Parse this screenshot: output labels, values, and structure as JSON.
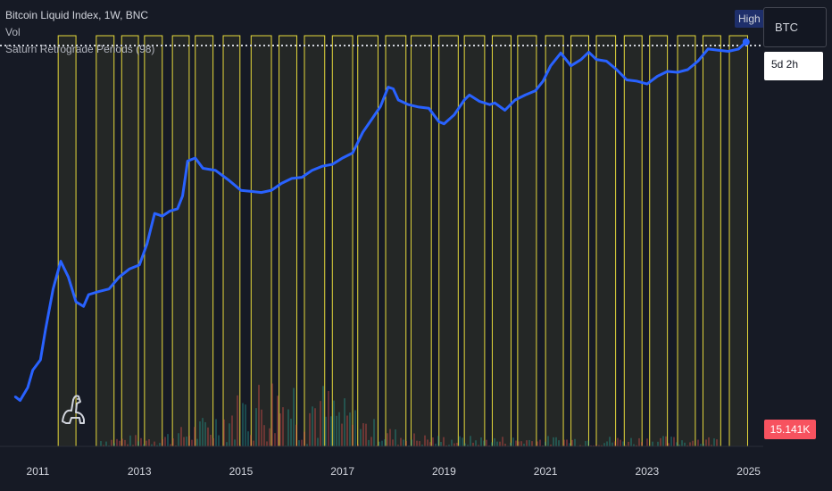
{
  "legend": {
    "title": "Bitcoin Liquid Index, 1W, BNC",
    "row1": "Vol",
    "row2": "Saturn Retrograde Periods (98)"
  },
  "badge_high": "High",
  "symbol": "BTC",
  "countdown": "5d 2h",
  "last_volume": "15.141K",
  "colors": {
    "background": "#161a25",
    "price_line": "#2962ff",
    "retrograde_border": "#e6d93b",
    "retrograde_fill": "rgba(230,217,59,0.07)",
    "volume_label": "#f7525f"
  },
  "chart_data": {
    "type": "line",
    "title": "Bitcoin Liquid Index, 1W, BNC",
    "x_ticks": [
      "2011",
      "2013",
      "2015",
      "2017",
      "2019",
      "2021",
      "2023",
      "2025"
    ],
    "xlim": [
      2010.5,
      2025.2
    ],
    "y_scale": "log",
    "ylim": [
      0.04,
      90000
    ],
    "series": [
      {
        "name": "Bitcoin Liquid Index",
        "x": [
          2010.55,
          2010.65,
          2010.8,
          2010.9,
          2011.05,
          2011.15,
          2011.3,
          2011.45,
          2011.6,
          2011.75,
          2011.9,
          2012.0,
          2012.2,
          2012.4,
          2012.6,
          2012.8,
          2013.0,
          2013.15,
          2013.3,
          2013.45,
          2013.6,
          2013.75,
          2013.85,
          2013.95,
          2014.1,
          2014.25,
          2014.5,
          2014.75,
          2015.0,
          2015.2,
          2015.4,
          2015.6,
          2015.8,
          2016.0,
          2016.2,
          2016.4,
          2016.6,
          2016.8,
          2017.0,
          2017.2,
          2017.4,
          2017.6,
          2017.75,
          2017.9,
          2018.0,
          2018.1,
          2018.3,
          2018.5,
          2018.7,
          2018.9,
          2019.0,
          2019.2,
          2019.4,
          2019.5,
          2019.7,
          2019.9,
          2020.0,
          2020.2,
          2020.4,
          2020.6,
          2020.8,
          2020.95,
          2021.1,
          2021.3,
          2021.5,
          2021.7,
          2021.85,
          2022.0,
          2022.2,
          2022.4,
          2022.6,
          2022.8,
          2023.0,
          2023.2,
          2023.4,
          2023.6,
          2023.8,
          2024.0,
          2024.2,
          2024.4,
          2024.6,
          2024.8,
          2024.95
        ],
        "values": [
          0.07,
          0.06,
          0.1,
          0.2,
          0.3,
          1.0,
          5,
          15,
          8,
          3,
          2.5,
          4,
          4.5,
          5,
          8,
          11,
          13,
          30,
          100,
          90,
          110,
          120,
          200,
          800,
          900,
          600,
          550,
          380,
          250,
          240,
          230,
          250,
          330,
          400,
          420,
          550,
          650,
          700,
          900,
          1100,
          2500,
          4500,
          7000,
          15000,
          14000,
          9000,
          7500,
          6800,
          6500,
          3800,
          3500,
          5000,
          9000,
          11000,
          8500,
          7500,
          8000,
          6000,
          9000,
          11000,
          13000,
          19000,
          35000,
          58000,
          35000,
          45000,
          60000,
          45000,
          42000,
          30000,
          20000,
          19000,
          17000,
          23000,
          28000,
          27000,
          30000,
          42000,
          68000,
          65000,
          62000,
          68000,
          90000
        ]
      }
    ],
    "retrograde_periods": [
      [
        2011.4,
        2011.75
      ],
      [
        2012.15,
        2012.5
      ],
      [
        2012.65,
        2012.98
      ],
      [
        2013.1,
        2013.45
      ],
      [
        2013.65,
        2013.98
      ],
      [
        2014.1,
        2014.45
      ],
      [
        2014.65,
        2014.98
      ],
      [
        2015.2,
        2015.6
      ],
      [
        2015.75,
        2016.1
      ],
      [
        2016.25,
        2016.65
      ],
      [
        2016.8,
        2017.2
      ],
      [
        2017.3,
        2017.7
      ],
      [
        2017.85,
        2018.25
      ],
      [
        2018.35,
        2018.75
      ],
      [
        2018.9,
        2019.28
      ],
      [
        2019.4,
        2019.8
      ],
      [
        2019.95,
        2020.32
      ],
      [
        2020.45,
        2020.82
      ],
      [
        2021.0,
        2021.35
      ],
      [
        2021.5,
        2021.85
      ],
      [
        2022.0,
        2022.38
      ],
      [
        2022.55,
        2022.9
      ],
      [
        2023.05,
        2023.4
      ],
      [
        2023.6,
        2023.95
      ],
      [
        2024.1,
        2024.45
      ],
      [
        2024.62,
        2024.98
      ]
    ]
  }
}
